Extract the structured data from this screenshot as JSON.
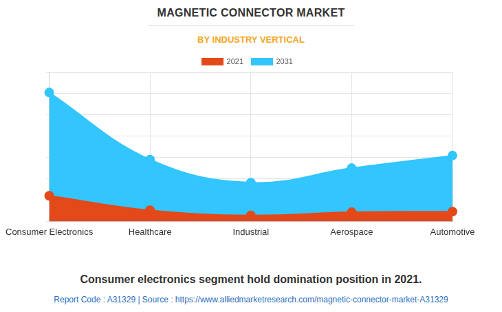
{
  "chart_data": {
    "type": "area",
    "title": "MAGNETIC CONNECTOR MARKET",
    "subtitle": "BY INDUSTRY VERTICAL",
    "caption": "Consumer electronics segment hold domination position in 2021.",
    "source": "Report Code : A31329  |  Source : https://www.alliedmarketresearch.com/magnetic-connector-market-A31329",
    "categories": [
      "Consumer Electronics",
      "Healthcare",
      "Industrial",
      "Aerospace",
      "Automotive"
    ],
    "series": [
      {
        "name": "2021",
        "color": "#e4491a",
        "marker": "circle",
        "line_style": "solid",
        "values": [
          1.2,
          0.52,
          0.28,
          0.43,
          0.46
        ]
      },
      {
        "name": "2031",
        "color": "#33c5fd",
        "marker": "circle",
        "line_style": "solid",
        "values": [
          6.05,
          2.9,
          1.82,
          2.5,
          3.09
        ]
      }
    ],
    "ylim": [
      0,
      7
    ],
    "yticks": [
      0,
      1,
      2,
      3,
      4,
      5,
      6,
      7
    ],
    "grid": true,
    "legend": "top",
    "tick_labels": "x"
  }
}
